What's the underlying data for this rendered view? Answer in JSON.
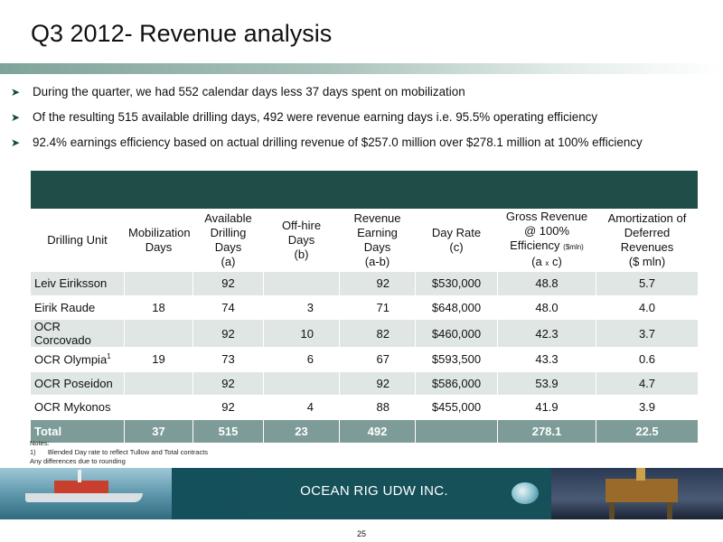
{
  "title": "Q3 2012- Revenue analysis",
  "bullets": [
    "During the quarter, we had 552 calendar days less 37 days spent on mobilization",
    "Of the resulting 515 available drilling days, 492 were revenue earning days i.e. 95.5% operating efficiency",
    "92.4% earnings efficiency based on actual drilling revenue of $257.0 million over $278.1 million at 100% efficiency"
  ],
  "table": {
    "headers": {
      "drilling_unit": "Drilling Unit",
      "mobilization_1": "Mobilization",
      "mobilization_2": "Days",
      "available_1": "Available",
      "available_2": "Drilling Days",
      "available_3": "(a)",
      "offhire_1": "Off-hire Days",
      "offhire_2": "(b)",
      "revenue_1": "Revenue",
      "revenue_2": "Earning Days",
      "revenue_3": "(a-b)",
      "dayrate_1": "Day Rate",
      "dayrate_2": "(c)",
      "gross_1": "Gross Revenue",
      "gross_2": "@ 100%",
      "gross_3": "Efficiency",
      "gross_unit": "($mln)",
      "gross_4a": "(a",
      "gross_x": "x",
      "gross_4b": "c)",
      "amort_1": "Amortization of",
      "amort_2": "Deferred",
      "amort_3": "Revenues",
      "amort_4": "($ mln)"
    },
    "rows": [
      {
        "unit": "Leiv Eiriksson",
        "sup": "",
        "mob": "",
        "avail": "92",
        "offhire": "",
        "earning": "92",
        "rate": "$530,000",
        "gross": "48.8",
        "amort": "5.7"
      },
      {
        "unit": "Eirik Raude",
        "sup": "",
        "mob": "18",
        "avail": "74",
        "offhire": "3",
        "earning": "71",
        "rate": "$648,000",
        "gross": "48.0",
        "amort": "4.0"
      },
      {
        "unit": "OCR Corcovado",
        "sup": "",
        "mob": "",
        "avail": "92",
        "offhire": "10",
        "earning": "82",
        "rate": "$460,000",
        "gross": "42.3",
        "amort": "3.7"
      },
      {
        "unit": "OCR Olympia",
        "sup": "1",
        "mob": "19",
        "avail": "73",
        "offhire": "6",
        "earning": "67",
        "rate": "$593,500",
        "gross": "43.3",
        "amort": "0.6"
      },
      {
        "unit": "OCR Poseidon",
        "sup": "",
        "mob": "",
        "avail": "92",
        "offhire": "",
        "earning": "92",
        "rate": "$586,000",
        "gross": "53.9",
        "amort": "4.7"
      },
      {
        "unit": "OCR Mykonos",
        "sup": "",
        "mob": "",
        "avail": "92",
        "offhire": "4",
        "earning": "88",
        "rate": "$455,000",
        "gross": "41.9",
        "amort": "3.9"
      }
    ],
    "total": {
      "label": "Total",
      "mob": "37",
      "avail": "515",
      "offhire": "23",
      "earning": "492",
      "rate": "",
      "gross": "278.1",
      "amort": "22.5"
    }
  },
  "notes": {
    "heading": "Notes:",
    "n1_marker": "1)",
    "n1_text": "Blended Day rate to reflect Tullow and Total contracts",
    "n2_text": "Any differences due to rounding"
  },
  "footer": {
    "company": "OCEAN RIG UDW INC."
  },
  "page_number": "25",
  "colors": {
    "header_band": "#1e4e47",
    "row_shade": "#dfe6e4",
    "total_row": "#7d9c97",
    "footer": "#16515a"
  }
}
